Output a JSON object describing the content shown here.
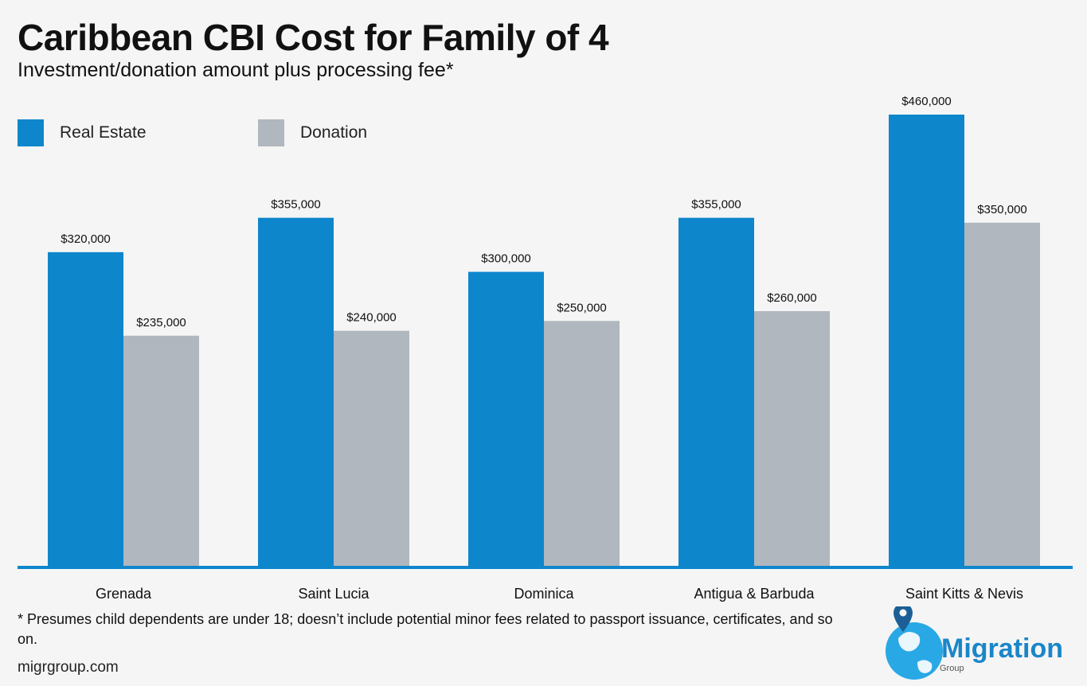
{
  "title": "Caribbean CBI Cost for Family of 4",
  "subtitle": "Investment/donation amount plus processing fee*",
  "legend": [
    {
      "label": "Real Estate",
      "color": "#0e86cc"
    },
    {
      "label": "Donation",
      "color": "#b0b7be"
    }
  ],
  "footnote": "* Presumes child dependents are under 18; doesn’t include potential minor fees related to passport issuance, certificates, and so on.",
  "site": "migrgroup.com",
  "logo": {
    "word": "Migration",
    "sub": "Group",
    "icon": "globe-pin-icon"
  },
  "chart_data": {
    "type": "bar",
    "title": "Caribbean CBI Cost for Family of 4",
    "categories": [
      "Grenada",
      "Saint Lucia",
      "Dominica",
      "Antigua & Barbuda",
      "Saint Kitts & Nevis"
    ],
    "series": [
      {
        "name": "Real Estate",
        "color": "#0e86cc",
        "values": [
          320000,
          355000,
          300000,
          355000,
          460000
        ],
        "labels": [
          "$320,000",
          "$355,000",
          "$300,000",
          "$355,000",
          "$460,000"
        ]
      },
      {
        "name": "Donation",
        "color": "#b0b7be",
        "values": [
          235000,
          240000,
          250000,
          260000,
          350000
        ],
        "labels": [
          "$235,000",
          "$240,000",
          "$250,000",
          "$260,000",
          "$350,000"
        ]
      }
    ],
    "ylim": [
      0,
      460000
    ],
    "xlabel": "",
    "ylabel": "",
    "grid": false,
    "legend": "top-left"
  }
}
